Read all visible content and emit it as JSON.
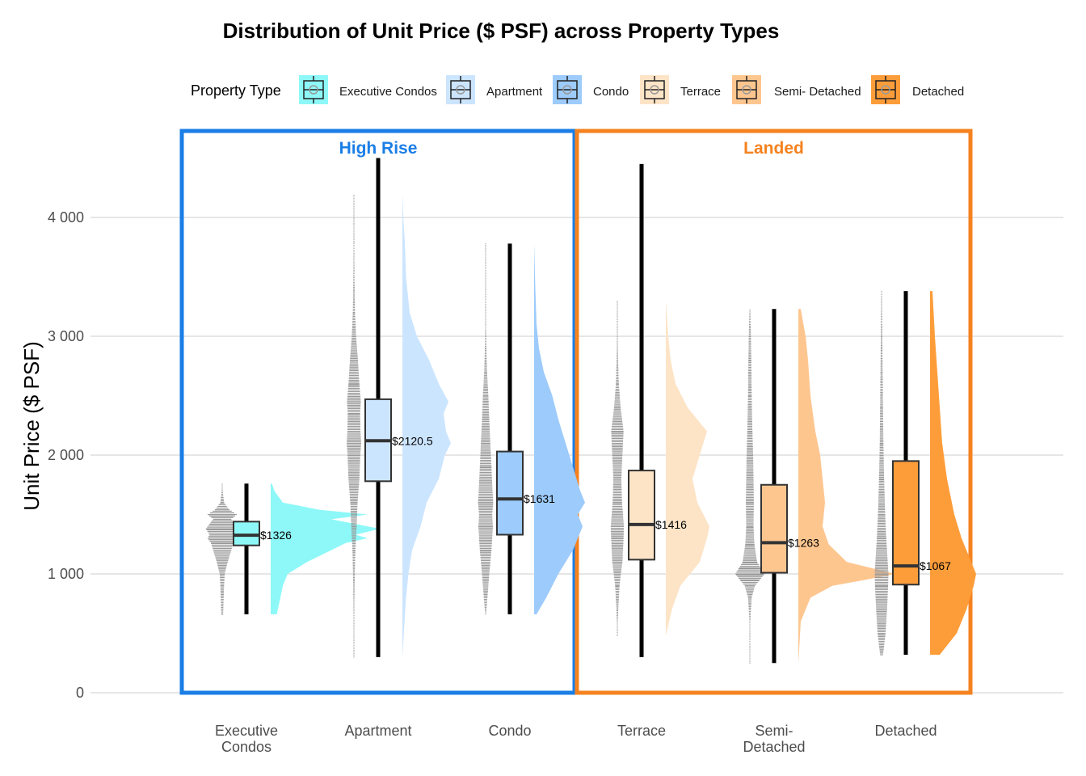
{
  "chart_data": {
    "type": "boxplot",
    "title": "Distribution of Unit Price ($ PSF) across Property Types",
    "ylabel": "Unit Price ($ PSF)",
    "xlabel": "",
    "ylim": [
      0,
      4500
    ],
    "yticks": [
      0,
      1000,
      2000,
      3000,
      4000
    ],
    "ytick_labels": [
      "0",
      "1 000",
      "2 000",
      "3 000",
      "4 000"
    ],
    "grid": "horizontal",
    "legend": {
      "title": "Property Type",
      "placement": "top",
      "entries": [
        "Executive Condos",
        "Apartment",
        "Condo",
        "Terrace",
        "Semi- Detached",
        "Detached"
      ]
    },
    "groups": [
      {
        "label": "High Rise",
        "color": "#1a7ee6",
        "categories": [
          0,
          1,
          2
        ]
      },
      {
        "label": "Landed",
        "color": "#f5821f",
        "categories": [
          3,
          4,
          5
        ]
      }
    ],
    "categories": [
      {
        "name": "Executive Condos",
        "tick": "Executive\nCondos",
        "color": "#8ef8f8",
        "min": 660,
        "q1": 1240,
        "median": 1326,
        "q3": 1440,
        "max": 1760,
        "median_label": "$1326",
        "density": [
          [
            660,
            0.05
          ],
          [
            800,
            0.08
          ],
          [
            900,
            0.1
          ],
          [
            1000,
            0.14
          ],
          [
            1100,
            0.3
          ],
          [
            1200,
            0.5
          ],
          [
            1260,
            0.62
          ],
          [
            1300,
            0.8
          ],
          [
            1330,
            0.7
          ],
          [
            1380,
            0.9
          ],
          [
            1420,
            0.7
          ],
          [
            1460,
            0.5
          ],
          [
            1500,
            0.8
          ],
          [
            1540,
            0.4
          ],
          [
            1600,
            0.1
          ],
          [
            1700,
            0.03
          ],
          [
            1760,
            0.01
          ]
        ]
      },
      {
        "name": "Apartment",
        "tick": "Apartment",
        "color": "#cce5ff",
        "min": 300,
        "q1": 1780,
        "median": 2120.5,
        "q3": 2470,
        "max": 4500,
        "median_label": "$2120.5",
        "density": [
          [
            300,
            0.0
          ],
          [
            800,
            0.03
          ],
          [
            1000,
            0.05
          ],
          [
            1200,
            0.08
          ],
          [
            1400,
            0.15
          ],
          [
            1600,
            0.2
          ],
          [
            1800,
            0.3
          ],
          [
            2000,
            0.35
          ],
          [
            2100,
            0.4
          ],
          [
            2200,
            0.36
          ],
          [
            2350,
            0.34
          ],
          [
            2450,
            0.38
          ],
          [
            2600,
            0.3
          ],
          [
            2800,
            0.22
          ],
          [
            3000,
            0.12
          ],
          [
            3200,
            0.06
          ],
          [
            3500,
            0.03
          ],
          [
            3800,
            0.02
          ],
          [
            3950,
            0.01
          ],
          [
            4200,
            0.0
          ]
        ]
      },
      {
        "name": "Condo",
        "tick": "Condo",
        "color": "#9dcbfb",
        "min": 660,
        "q1": 1330,
        "median": 1631,
        "q3": 2030,
        "max": 3780,
        "median_label": "$1631",
        "density": [
          [
            660,
            0.02
          ],
          [
            800,
            0.1
          ],
          [
            1000,
            0.2
          ],
          [
            1200,
            0.32
          ],
          [
            1400,
            0.4
          ],
          [
            1500,
            0.36
          ],
          [
            1600,
            0.42
          ],
          [
            1700,
            0.38
          ],
          [
            1900,
            0.32
          ],
          [
            2100,
            0.26
          ],
          [
            2300,
            0.2
          ],
          [
            2500,
            0.15
          ],
          [
            2700,
            0.08
          ],
          [
            2900,
            0.04
          ],
          [
            3100,
            0.02
          ],
          [
            3400,
            0.01
          ],
          [
            3780,
            0.0
          ]
        ]
      },
      {
        "name": "Terrace",
        "tick": "Terrace",
        "color": "#fde4c7",
        "min": 300,
        "q1": 1120,
        "median": 1416,
        "q3": 1870,
        "max": 4450,
        "median_label": "$1416",
        "density": [
          [
            480,
            0.0
          ],
          [
            700,
            0.05
          ],
          [
            900,
            0.12
          ],
          [
            1100,
            0.28
          ],
          [
            1300,
            0.34
          ],
          [
            1400,
            0.36
          ],
          [
            1600,
            0.26
          ],
          [
            1800,
            0.22
          ],
          [
            2000,
            0.28
          ],
          [
            2200,
            0.34
          ],
          [
            2400,
            0.18
          ],
          [
            2600,
            0.08
          ],
          [
            2800,
            0.04
          ],
          [
            3000,
            0.02
          ],
          [
            3300,
            0.0
          ]
        ]
      },
      {
        "name": "Semi- Detached",
        "tick": "Semi-\nDetached",
        "color": "#fec68f",
        "min": 250,
        "q1": 1010,
        "median": 1263,
        "q3": 1750,
        "max": 3230,
        "median_label": "$1263",
        "density": [
          [
            250,
            0.0
          ],
          [
            600,
            0.02
          ],
          [
            800,
            0.1
          ],
          [
            900,
            0.28
          ],
          [
            950,
            0.55
          ],
          [
            1000,
            0.8
          ],
          [
            1050,
            0.6
          ],
          [
            1100,
            0.4
          ],
          [
            1250,
            0.25
          ],
          [
            1400,
            0.2
          ],
          [
            1600,
            0.22
          ],
          [
            1800,
            0.2
          ],
          [
            2000,
            0.18
          ],
          [
            2200,
            0.14
          ],
          [
            2500,
            0.1
          ],
          [
            2800,
            0.08
          ],
          [
            3000,
            0.06
          ],
          [
            3230,
            0.02
          ]
        ]
      },
      {
        "name": "Detached",
        "tick": "Detached",
        "color": "#fd9d3a",
        "min": 320,
        "q1": 910,
        "median": 1067,
        "q3": 1950,
        "max": 3380,
        "median_label": "$1067",
        "density": [
          [
            320,
            0.08
          ],
          [
            500,
            0.22
          ],
          [
            700,
            0.3
          ],
          [
            900,
            0.36
          ],
          [
            1000,
            0.38
          ],
          [
            1100,
            0.34
          ],
          [
            1300,
            0.26
          ],
          [
            1500,
            0.2
          ],
          [
            1800,
            0.14
          ],
          [
            2100,
            0.1
          ],
          [
            2400,
            0.08
          ],
          [
            2700,
            0.06
          ],
          [
            3000,
            0.04
          ],
          [
            3380,
            0.02
          ]
        ]
      }
    ]
  }
}
